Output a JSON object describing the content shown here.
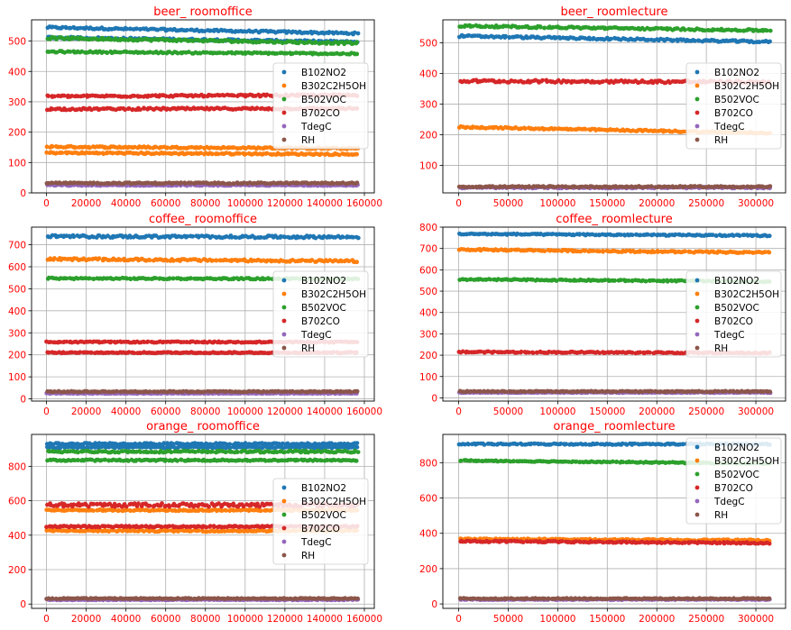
{
  "figure": {
    "text_color": "#ff0000",
    "grid_color": "#b0b0b0",
    "legend": [
      "B102NO2",
      "B302C2H5OH",
      "B502VOC",
      "B702CO",
      "TdegC",
      "RH"
    ],
    "series_colors": {
      "B102NO2": "#1f77b4",
      "B302C2H5OH": "#ff7f0e",
      "B502VOC": "#2ca02c",
      "B702CO": "#d62728",
      "TdegC": "#9467bd",
      "RH": "#8c564b"
    }
  },
  "chart_data": [
    {
      "type": "scatter",
      "title": "beer_ roomoffice",
      "xlabel": "",
      "ylabel": "",
      "xlim": [
        -7500,
        165000
      ],
      "ylim": [
        0,
        570
      ],
      "xticks": [
        0,
        20000,
        40000,
        60000,
        80000,
        100000,
        120000,
        140000,
        160000
      ],
      "yticks": [
        0,
        100,
        200,
        300,
        400,
        500
      ],
      "grid": true,
      "legend_position": "center-right",
      "series": [
        {
          "name": "B102NO2",
          "bands": [
            {
              "x": [
                0,
                157000
              ],
              "y": [
                545,
                525
              ],
              "spread": 6
            },
            {
              "x": [
                0,
                157000
              ],
              "y": [
                512,
                497
              ],
              "spread": 6
            }
          ]
        },
        {
          "name": "B302C2H5OH",
          "bands": [
            {
              "x": [
                0,
                157000
              ],
              "y": [
                152,
                146
              ],
              "spread": 5
            },
            {
              "x": [
                0,
                157000
              ],
              "y": [
                132,
                127
              ],
              "spread": 5
            }
          ]
        },
        {
          "name": "B502VOC",
          "bands": [
            {
              "x": [
                0,
                157000
              ],
              "y": [
                510,
                493
              ],
              "spread": 7
            },
            {
              "x": [
                0,
                157000
              ],
              "y": [
                465,
                458
              ],
              "spread": 5
            }
          ]
        },
        {
          "name": "B702CO",
          "bands": [
            {
              "x": [
                0,
                157000
              ],
              "y": [
                318,
                322
              ],
              "spread": 6
            },
            {
              "x": [
                0,
                157000
              ],
              "y": [
                276,
                278
              ],
              "spread": 6
            }
          ]
        },
        {
          "name": "TdegC",
          "bands": [
            {
              "x": [
                0,
                157000
              ],
              "y": [
                25,
                25
              ],
              "spread": 3
            }
          ]
        },
        {
          "name": "RH",
          "bands": [
            {
              "x": [
                0,
                157000
              ],
              "y": [
                32,
                32
              ],
              "spread": 4
            }
          ]
        }
      ]
    },
    {
      "type": "scatter",
      "title": "beer_ roomlecture",
      "xlabel": "",
      "ylabel": "",
      "xlim": [
        -16000,
        330000
      ],
      "ylim": [
        10,
        575
      ],
      "xticks": [
        0,
        50000,
        100000,
        150000,
        200000,
        250000,
        300000
      ],
      "yticks": [
        100,
        200,
        300,
        400,
        500
      ],
      "grid": true,
      "legend_position": "center-right",
      "series": [
        {
          "name": "B102NO2",
          "bands": [
            {
              "x": [
                0,
                315000
              ],
              "y": [
                522,
                503
              ],
              "spread": 6
            }
          ]
        },
        {
          "name": "B302C2H5OH",
          "bands": [
            {
              "x": [
                0,
                315000
              ],
              "y": [
                225,
                205
              ],
              "spread": 5
            }
          ]
        },
        {
          "name": "B502VOC",
          "bands": [
            {
              "x": [
                0,
                315000
              ],
              "y": [
                555,
                540
              ],
              "spread": 6
            }
          ]
        },
        {
          "name": "B702CO",
          "bands": [
            {
              "x": [
                0,
                315000
              ],
              "y": [
                375,
                372
              ],
              "spread": 8
            }
          ]
        },
        {
          "name": "TdegC",
          "bands": [
            {
              "x": [
                0,
                315000
              ],
              "y": [
                27,
                27
              ],
              "spread": 4
            }
          ]
        },
        {
          "name": "RH",
          "bands": [
            {
              "x": [
                0,
                315000
              ],
              "y": [
                30,
                30
              ],
              "spread": 4
            }
          ]
        }
      ]
    },
    {
      "type": "scatter",
      "title": "coffee_ roomoffice",
      "xlabel": "",
      "ylabel": "",
      "xlim": [
        -7500,
        165000
      ],
      "ylim": [
        -10,
        780
      ],
      "xticks": [
        0,
        20000,
        40000,
        60000,
        80000,
        100000,
        120000,
        140000,
        160000
      ],
      "yticks": [
        0,
        100,
        200,
        300,
        400,
        500,
        600,
        700
      ],
      "grid": true,
      "legend_position": "center-right",
      "series": [
        {
          "name": "B102NO2",
          "bands": [
            {
              "x": [
                0,
                157000
              ],
              "y": [
                738,
                735
              ],
              "spread": 10
            }
          ]
        },
        {
          "name": "B302C2H5OH",
          "bands": [
            {
              "x": [
                0,
                157000
              ],
              "y": [
                635,
                625
              ],
              "spread": 9
            }
          ]
        },
        {
          "name": "B502VOC",
          "bands": [
            {
              "x": [
                0,
                157000
              ],
              "y": [
                547,
                545
              ],
              "spread": 6
            }
          ]
        },
        {
          "name": "B702CO",
          "bands": [
            {
              "x": [
                0,
                157000
              ],
              "y": [
                258,
                258
              ],
              "spread": 5
            },
            {
              "x": [
                0,
                157000
              ],
              "y": [
                210,
                210
              ],
              "spread": 5
            }
          ]
        },
        {
          "name": "TdegC",
          "bands": [
            {
              "x": [
                0,
                157000
              ],
              "y": [
                25,
                25
              ],
              "spread": 3
            }
          ]
        },
        {
          "name": "RH",
          "bands": [
            {
              "x": [
                0,
                157000
              ],
              "y": [
                33,
                33
              ],
              "spread": 4
            }
          ]
        }
      ]
    },
    {
      "type": "scatter",
      "title": "coffee_ roomlecture",
      "xlabel": "",
      "ylabel": "",
      "xlim": [
        -16000,
        330000
      ],
      "ylim": [
        -15,
        800
      ],
      "xticks": [
        0,
        50000,
        100000,
        150000,
        200000,
        250000,
        300000
      ],
      "yticks": [
        0,
        100,
        200,
        300,
        400,
        500,
        600,
        700,
        800
      ],
      "grid": true,
      "legend_position": "center-right",
      "series": [
        {
          "name": "B102NO2",
          "bands": [
            {
              "x": [
                0,
                315000
              ],
              "y": [
                768,
                760
              ],
              "spread": 6
            }
          ]
        },
        {
          "name": "B302C2H5OH",
          "bands": [
            {
              "x": [
                0,
                315000
              ],
              "y": [
                695,
                680
              ],
              "spread": 7
            }
          ]
        },
        {
          "name": "B502VOC",
          "bands": [
            {
              "x": [
                0,
                315000
              ],
              "y": [
                555,
                545
              ],
              "spread": 6
            }
          ]
        },
        {
          "name": "B702CO",
          "bands": [
            {
              "x": [
                0,
                315000
              ],
              "y": [
                215,
                210
              ],
              "spread": 6
            }
          ]
        },
        {
          "name": "TdegC",
          "bands": [
            {
              "x": [
                0,
                315000
              ],
              "y": [
                25,
                25
              ],
              "spread": 3
            }
          ]
        },
        {
          "name": "RH",
          "bands": [
            {
              "x": [
                0,
                315000
              ],
              "y": [
                30,
                30
              ],
              "spread": 4
            }
          ]
        }
      ]
    },
    {
      "type": "scatter",
      "title": "orange_ roomoffice",
      "xlabel": "",
      "ylabel": "",
      "xlim": [
        -7500,
        165000
      ],
      "ylim": [
        -25,
        985
      ],
      "xticks": [
        0,
        20000,
        40000,
        60000,
        80000,
        100000,
        120000,
        140000,
        160000
      ],
      "yticks": [
        0,
        200,
        400,
        600,
        800
      ],
      "grid": true,
      "legend_position": "center-right",
      "series": [
        {
          "name": "B102NO2",
          "bands": [
            {
              "x": [
                0,
                157000
              ],
              "y": [
                930,
                930
              ],
              "spread": 10
            },
            {
              "x": [
                0,
                157000
              ],
              "y": [
                910,
                910
              ],
              "spread": 10
            }
          ]
        },
        {
          "name": "B302C2H5OH",
          "bands": [
            {
              "x": [
                0,
                157000
              ],
              "y": [
                545,
                545
              ],
              "spread": 8
            },
            {
              "x": [
                0,
                157000
              ],
              "y": [
                425,
                425
              ],
              "spread": 8
            }
          ]
        },
        {
          "name": "B502VOC",
          "bands": [
            {
              "x": [
                0,
                157000
              ],
              "y": [
                885,
                885
              ],
              "spread": 10
            },
            {
              "x": [
                0,
                157000
              ],
              "y": [
                835,
                835
              ],
              "spread": 8
            }
          ]
        },
        {
          "name": "B702CO",
          "bands": [
            {
              "x": [
                0,
                157000
              ],
              "y": [
                575,
                575
              ],
              "spread": 20
            },
            {
              "x": [
                0,
                157000
              ],
              "y": [
                450,
                450
              ],
              "spread": 8
            }
          ]
        },
        {
          "name": "TdegC",
          "bands": [
            {
              "x": [
                0,
                157000
              ],
              "y": [
                25,
                25
              ],
              "spread": 4
            }
          ]
        },
        {
          "name": "RH",
          "bands": [
            {
              "x": [
                0,
                157000
              ],
              "y": [
                32,
                32
              ],
              "spread": 5
            }
          ]
        }
      ]
    },
    {
      "type": "scatter",
      "title": "orange_ roomlecture",
      "xlabel": "",
      "ylabel": "",
      "xlim": [
        -16000,
        330000
      ],
      "ylim": [
        -25,
        960
      ],
      "xticks": [
        0,
        50000,
        100000,
        150000,
        200000,
        250000,
        300000
      ],
      "yticks": [
        0,
        200,
        400,
        600,
        800
      ],
      "grid": true,
      "legend_position": "top-right",
      "series": [
        {
          "name": "B102NO2",
          "bands": [
            {
              "x": [
                0,
                315000
              ],
              "y": [
                905,
                905
              ],
              "spread": 7
            }
          ]
        },
        {
          "name": "B302C2H5OH",
          "bands": [
            {
              "x": [
                0,
                315000
              ],
              "y": [
                368,
                360
              ],
              "spread": 7
            }
          ]
        },
        {
          "name": "B502VOC",
          "bands": [
            {
              "x": [
                0,
                315000
              ],
              "y": [
                812,
                795
              ],
              "spread": 6
            }
          ]
        },
        {
          "name": "B702CO",
          "bands": [
            {
              "x": [
                0,
                315000
              ],
              "y": [
                355,
                345
              ],
              "spread": 8
            }
          ]
        },
        {
          "name": "TdegC",
          "bands": [
            {
              "x": [
                0,
                315000
              ],
              "y": [
                25,
                25
              ],
              "spread": 4
            }
          ]
        },
        {
          "name": "RH",
          "bands": [
            {
              "x": [
                0,
                315000
              ],
              "y": [
                30,
                30
              ],
              "spread": 5
            }
          ]
        }
      ]
    }
  ]
}
